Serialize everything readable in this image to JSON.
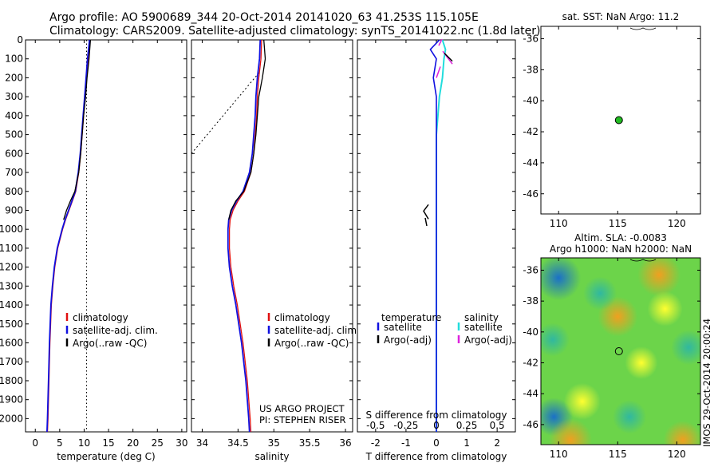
{
  "header": {
    "line1": "Argo profile: AO 5900689_344 20-Oct-2014 20141020_63 41.253S 115.105E",
    "line2": "Climatology: CARS2009. Satellite-adjusted climatology: synTS_20141022.nc (1.8d later)"
  },
  "credits": {
    "project": "US ARGO PROJECT",
    "pi": "PI: STEPHEN RISER",
    "timestamp": "IMOS 29-Oct-2014 20:00:24"
  },
  "colors": {
    "climatology": "#e01010",
    "satellite": "#1010e0",
    "argo": "#000000",
    "satellite_sal": "#22dddd",
    "argo_sal": "#dd22dd",
    "argo_dot": "#22bb22"
  },
  "chart_data": [
    {
      "type": "line",
      "panel": "temperature",
      "xlabel": "temperature (deg C)",
      "xlim": [
        -2,
        31
      ],
      "xticks": [
        "0",
        "5",
        "10",
        "15",
        "20",
        "25",
        "30"
      ],
      "ylim": [
        2070,
        0
      ],
      "yticks": [
        "0",
        "100",
        "200",
        "300",
        "400",
        "500",
        "600",
        "700",
        "800",
        "900",
        "1000",
        "1100",
        "1200",
        "1300",
        "1400",
        "1500",
        "1600",
        "1700",
        "1800",
        "1900",
        "2000"
      ],
      "legend": [
        "climatology",
        "satellite-adj. clim.",
        "Argo(..raw -QC)"
      ],
      "depth": [
        0,
        100,
        200,
        300,
        400,
        500,
        600,
        700,
        800,
        850,
        900,
        950,
        1000,
        1100,
        1200,
        1300,
        1400,
        1600,
        1800,
        2000,
        2070
      ],
      "series": [
        {
          "name": "climatology",
          "x": [
            11.2,
            10.8,
            10.5,
            10.2,
            9.9,
            9.6,
            9.3,
            8.9,
            8.3,
            7.6,
            6.9,
            6.2,
            5.6,
            4.6,
            4.0,
            3.6,
            3.3,
            3.0,
            2.8,
            2.6,
            2.5
          ]
        },
        {
          "name": "satellite-adj. clim.",
          "x": [
            11.1,
            10.7,
            10.4,
            10.1,
            9.8,
            9.5,
            9.2,
            8.8,
            8.2,
            7.5,
            6.8,
            6.1,
            5.5,
            4.5,
            3.9,
            3.5,
            3.2,
            2.9,
            2.7,
            2.5,
            2.4
          ]
        },
        {
          "name": "Argo(..raw -QC)",
          "x": [
            11.3,
            11.0,
            10.6,
            10.3,
            9.9,
            9.6,
            9.3,
            8.9,
            8.1,
            7.2,
            6.4,
            5.8
          ]
        }
      ],
      "reference": {
        "x": 10.5
      }
    },
    {
      "type": "line",
      "panel": "salinity",
      "xlabel": "salinity",
      "xlim": [
        33.85,
        36.1
      ],
      "xticks": [
        "34",
        "34.5",
        "35",
        "35.5",
        "36"
      ],
      "ylim": [
        2070,
        0
      ],
      "legend": [
        "climatology",
        "satellite-adj. clim.",
        "Argo(..raw -QC)"
      ],
      "depth": [
        0,
        100,
        200,
        300,
        400,
        500,
        600,
        700,
        800,
        850,
        900,
        950,
        1000,
        1100,
        1200,
        1300,
        1400,
        1600,
        1800,
        2000,
        2070
      ],
      "series": [
        {
          "name": "climatology",
          "x": [
            34.83,
            34.82,
            34.79,
            34.77,
            34.76,
            34.74,
            34.72,
            34.68,
            34.59,
            34.5,
            34.43,
            34.39,
            34.38,
            34.38,
            34.4,
            34.44,
            34.49,
            34.57,
            34.63,
            34.67,
            34.68
          ]
        },
        {
          "name": "satellite-adj. clim.",
          "x": [
            34.81,
            34.8,
            34.77,
            34.75,
            34.74,
            34.72,
            34.7,
            34.66,
            34.57,
            34.48,
            34.41,
            34.37,
            34.36,
            34.36,
            34.38,
            34.42,
            34.47,
            34.55,
            34.61,
            34.65,
            34.66
          ]
        },
        {
          "name": "Argo(..raw -QC)",
          "x": [
            34.86,
            34.88,
            34.84,
            34.79,
            34.77,
            34.75,
            34.72,
            34.68,
            34.58,
            34.47,
            34.4,
            34.37
          ]
        }
      ],
      "guide": {
        "x": [
          33.85,
          34.8
        ],
        "depth": [
          600,
          170
        ]
      }
    },
    {
      "type": "line",
      "panel": "differences",
      "xlabel": "T difference from climatology",
      "xlabel_top": "S difference from climatology",
      "xlim": [
        -2.6,
        2.6
      ],
      "xticks": [
        "-2",
        "-1",
        "0",
        "1",
        "2"
      ],
      "xticks_top": [
        "-0.5",
        "-0.25",
        "0",
        "0.25",
        "0.5"
      ],
      "ylim": [
        2070,
        0
      ],
      "legend_temperature": {
        "title": "temperature",
        "items": [
          "satellite",
          "Argo(-adj)"
        ]
      },
      "legend_salinity": {
        "title": "salinity",
        "items": [
          "satellite",
          "Argo(-adj)"
        ]
      },
      "depth": [
        0,
        50,
        100,
        200,
        300,
        400,
        500,
        700,
        900,
        1100,
        1300,
        1500,
        1700,
        1900,
        2070
      ],
      "series": [
        {
          "name": "satellite",
          "x": [
            0.1,
            -0.2,
            0.0,
            -0.1,
            0.0,
            0.0,
            0.0,
            0.0,
            0.0,
            0.0,
            0.0,
            0.0,
            0.0,
            0.0,
            0.0
          ]
        },
        {
          "name": "satellite salinity",
          "x": [
            0.2,
            0.3,
            0.25,
            0.2,
            0.1,
            0.05,
            0.0,
            0.0,
            0.0,
            0.0,
            0.0,
            0.0,
            0.0,
            0.0,
            0.0
          ]
        }
      ]
    },
    {
      "type": "scatter",
      "panel": "sst_map",
      "title": "sat. SST: NaN Argo: 11.2",
      "xlim": [
        108.5,
        122
      ],
      "ylim": [
        -47.3,
        -35.2
      ],
      "xticks": [
        "110",
        "115",
        "120"
      ],
      "yticks": [
        "-36",
        "-38",
        "-40",
        "-42",
        "-44",
        "-46"
      ],
      "points": [
        {
          "x": 115.1,
          "y": -41.25
        }
      ]
    },
    {
      "type": "heatmap",
      "panel": "sla_map",
      "title_line1": "Altim. SLA: -0.0083",
      "title_line2": "Argo h1000: NaN h2000: NaN",
      "xlim": [
        108.5,
        122
      ],
      "ylim": [
        -47.3,
        -35.2
      ],
      "xticks": [
        "110",
        "115",
        "120"
      ],
      "yticks": [
        "-36",
        "-38",
        "-40",
        "-42",
        "-44",
        "-46"
      ],
      "points": [
        {
          "x": 115.1,
          "y": -41.25
        }
      ],
      "blobs": [
        {
          "x": 110.0,
          "y": -36.5,
          "level": -1.0
        },
        {
          "x": 109.5,
          "y": -40.5,
          "level": -0.3
        },
        {
          "x": 109.6,
          "y": -45.5,
          "level": -0.6
        },
        {
          "x": 118.5,
          "y": -36.3,
          "level": 0.9
        },
        {
          "x": 115.0,
          "y": -39.0,
          "level": 0.7
        },
        {
          "x": 119.0,
          "y": -38.5,
          "level": 0.4
        },
        {
          "x": 112.0,
          "y": -44.5,
          "level": 0.5
        },
        {
          "x": 111.0,
          "y": -47.0,
          "level": 0.9
        },
        {
          "x": 120.5,
          "y": -47.0,
          "level": 0.6
        },
        {
          "x": 113.5,
          "y": -37.5,
          "level": -0.3
        },
        {
          "x": 117.0,
          "y": -42.0,
          "level": 0.25
        },
        {
          "x": 121.0,
          "y": -41.0,
          "level": -0.4
        },
        {
          "x": 116.0,
          "y": -45.5,
          "level": -0.3
        }
      ]
    }
  ]
}
